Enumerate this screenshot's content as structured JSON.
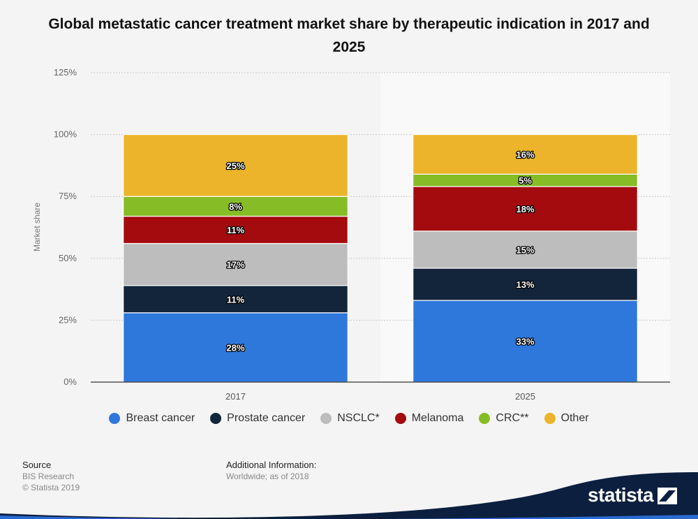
{
  "title": "Global metastatic cancer treatment market share by therapeutic indication in 2017 and 2025",
  "chart_data": {
    "type": "bar",
    "stacked": true,
    "categories": [
      "2017",
      "2025"
    ],
    "series": [
      {
        "name": "Breast cancer",
        "color": "#2e77db",
        "values": [
          28,
          33
        ],
        "labels": [
          "28%",
          "33%"
        ]
      },
      {
        "name": "Prostate cancer",
        "color": "#13253b",
        "values": [
          11,
          13
        ],
        "labels": [
          "11%",
          "13%"
        ]
      },
      {
        "name": "NSCLC*",
        "color": "#bdbdbd",
        "values": [
          17,
          15
        ],
        "labels": [
          "17%",
          "15%"
        ]
      },
      {
        "name": "Melanoma",
        "color": "#a30b0f",
        "values": [
          11,
          18
        ],
        "labels": [
          "11%",
          "18%"
        ]
      },
      {
        "name": "CRC**",
        "color": "#86bc25",
        "values": [
          8,
          5
        ],
        "labels": [
          "8%",
          "5%"
        ]
      },
      {
        "name": "Other",
        "color": "#ebb42a",
        "values": [
          25,
          16
        ],
        "labels": [
          "25%",
          "16%"
        ]
      }
    ],
    "ylabel": "Market share",
    "ylim": [
      0,
      125
    ],
    "yticks": [
      "0%",
      "25%",
      "50%",
      "75%",
      "100%",
      "125%"
    ],
    "grid": true,
    "legend": "bottom"
  },
  "footer": {
    "source_heading": "Source",
    "source_line1": "BIS Research",
    "source_line2": "© Statista 2019",
    "info_heading": "Additional Information:",
    "info_line": "Worldwide; as of 2018",
    "brand": "statista"
  }
}
